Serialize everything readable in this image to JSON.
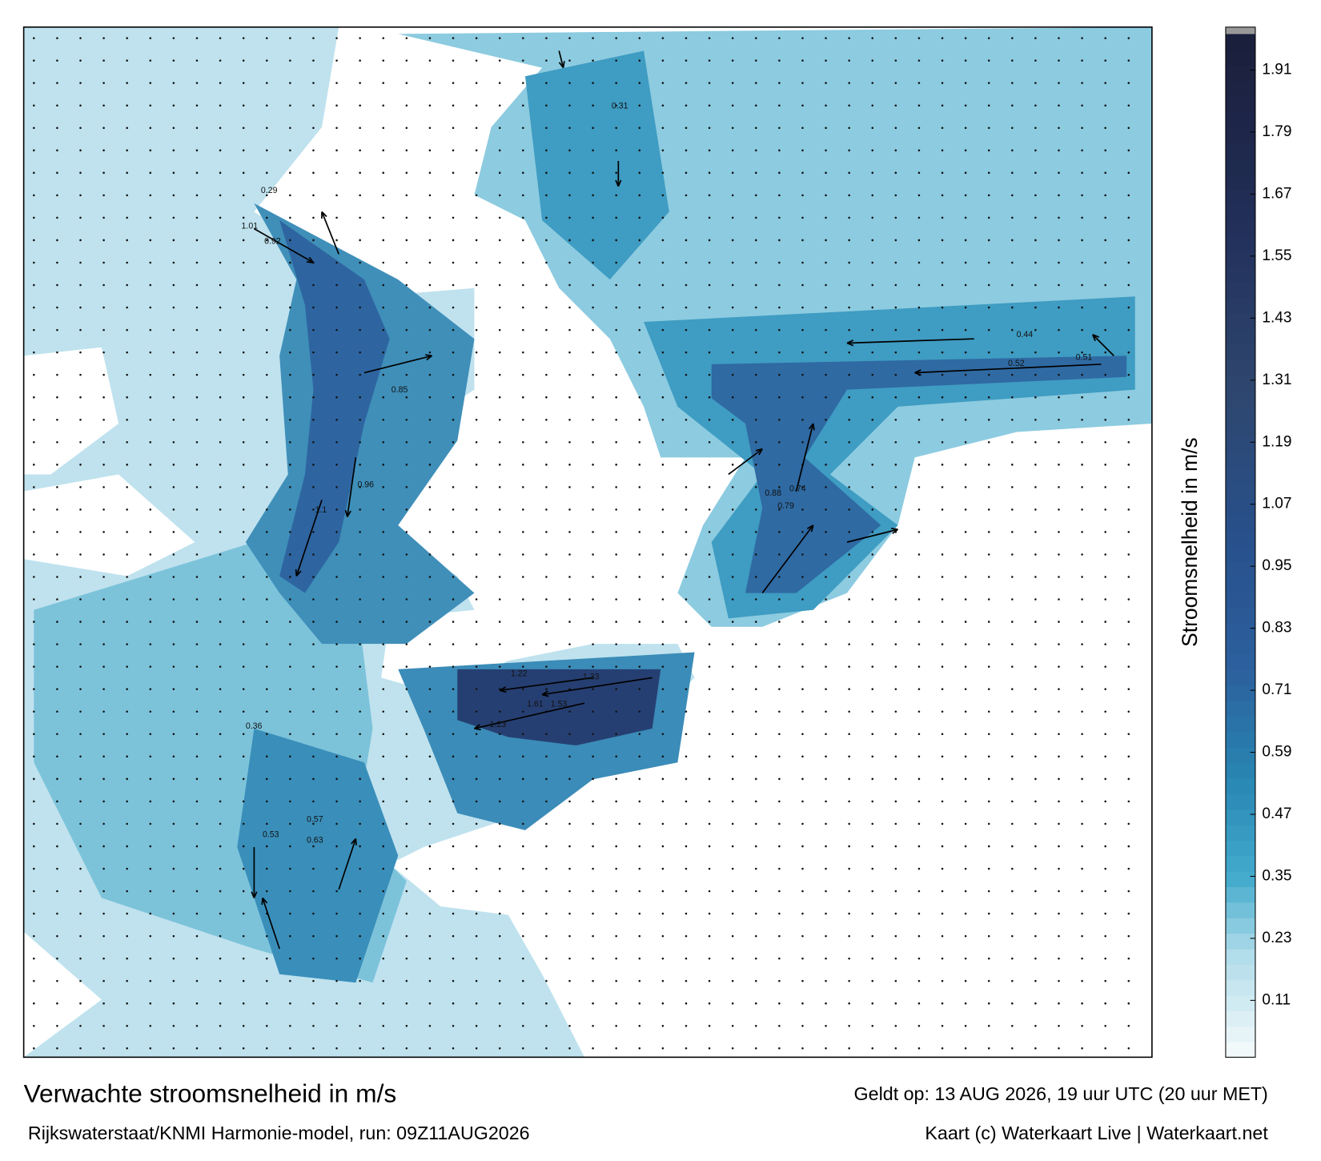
{
  "title": "Verwachte stroomsnelheid in m/s",
  "subtitle": "Rijkswaterstaat/KNMI Harmonie-model, run: 09Z11AUG2026",
  "valid_time": "Geldt op: 13 AUG 2026, 19 uur UTC (20 uur MET)",
  "credit": "Kaart (c) Waterkaart Live | Waterkaart.net",
  "colorbar": {
    "label": "Stroomsnelheid in m/s",
    "ylim": [
      0,
      1.98
    ],
    "yticks": [
      0.11,
      0.23,
      0.35,
      0.47,
      0.59,
      0.71,
      0.83,
      0.95,
      1.07,
      1.19,
      1.31,
      1.43,
      1.55,
      1.67,
      1.79,
      1.91
    ]
  },
  "speed_labels": [
    1.01,
    0.92,
    1.22,
    1.33,
    1.61,
    1.53,
    1.23,
    0.88,
    0.79,
    0.74,
    0.96,
    1.1,
    0.85,
    0.53,
    0.57,
    0.63,
    0.36,
    0.29,
    0.31,
    0.52,
    0.51,
    0.44
  ]
}
